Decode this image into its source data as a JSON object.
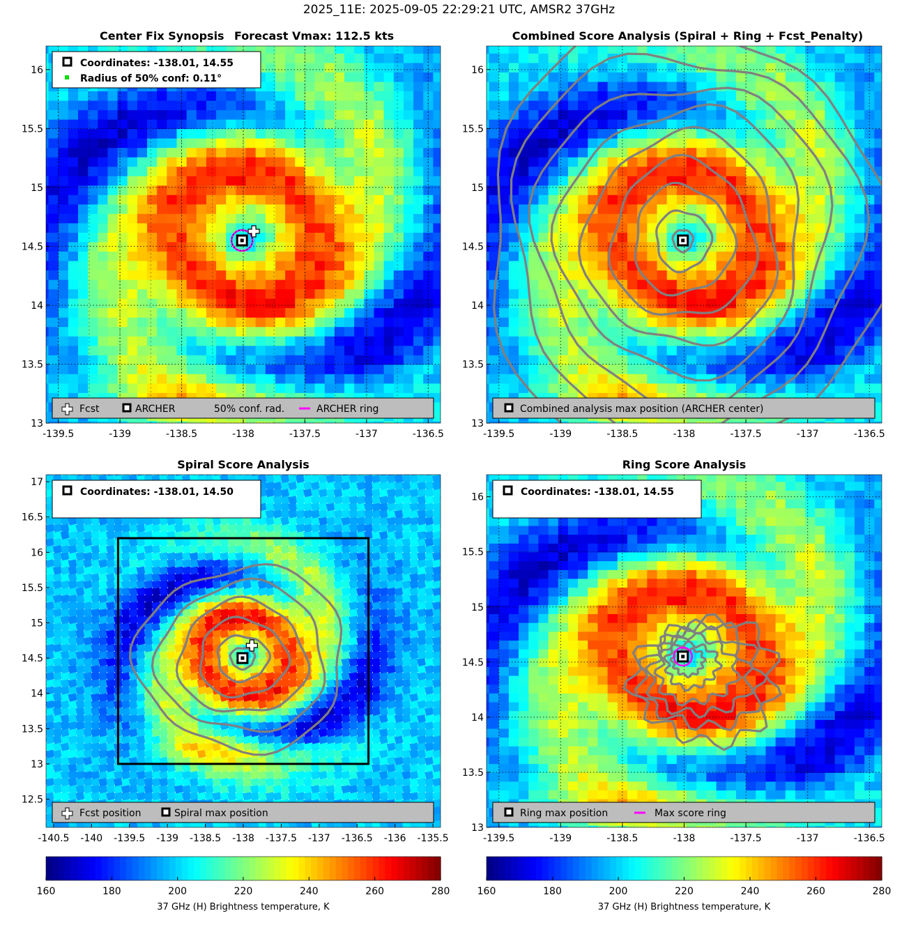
{
  "figure_title": "2025_11E: 2025-09-05 22:29:21 UTC, AMSR2 37GHz",
  "colors": {
    "fcst": "#ffffff",
    "archer_marker": "#000000",
    "ring": "#ff00ff",
    "conf_point": "#00dd00",
    "contour": "#808080",
    "legend_bg": "#bdbdbd"
  },
  "chart_data": [
    {
      "id": "synopsis",
      "type": "heatmap",
      "title": "Center Fix Synopsis      Forecast Vmax: 112.5 kts",
      "xlim": [
        -139.6,
        -136.4
      ],
      "ylim": [
        13.0,
        16.2
      ],
      "xticks": [
        -139.5,
        -139,
        -138.5,
        -138,
        -137.5,
        -137,
        -136.5
      ],
      "xtick_labels": [
        "-139.5",
        "-139",
        "-138.5",
        "-138",
        "-137.5",
        "-137",
        "-136.5"
      ],
      "yticks": [
        13,
        13.5,
        14,
        14.5,
        15,
        15.5,
        16
      ],
      "ytick_labels": [
        "13",
        "13.5",
        "14",
        "14.5",
        "15",
        "15.5",
        "16"
      ],
      "grid": "dotted",
      "center": [
        -138.01,
        14.55
      ],
      "fcst_position": [
        -137.96,
        14.58
      ],
      "conf_radius_deg": 0.11,
      "info_lines": [
        "Coordinates: -138.01, 14.55",
        "Radius of 50% conf: 0.11°"
      ],
      "legend": [
        "Fcst",
        "ARCHER",
        "50% conf. rad.",
        "ARCHER ring"
      ],
      "legend_placement": "bottom"
    },
    {
      "id": "combined",
      "type": "heatmap",
      "title": "Combined Score Analysis (Spiral + Ring + Fcst_Penalty)",
      "xlim": [
        -139.6,
        -136.4
      ],
      "ylim": [
        13.0,
        16.2
      ],
      "xticks": [
        -139.5,
        -139,
        -138.5,
        -138,
        -137.5,
        -137,
        -136.5
      ],
      "xtick_labels": [
        "-139.5",
        "-139",
        "-138.5",
        "-138",
        "-137.5",
        "-137",
        "-136.5"
      ],
      "yticks": [
        13,
        13.5,
        14,
        14.5,
        15,
        15.5,
        16
      ],
      "ytick_labels": [
        "13",
        "13.5",
        "14",
        "14.5",
        "15",
        "15.5",
        "16"
      ],
      "grid": "dotted",
      "center": [
        -138.01,
        14.55
      ],
      "contour_radii_deg": [
        0.08,
        0.22,
        0.4,
        0.58,
        0.78,
        0.98,
        1.18,
        1.4,
        1.62
      ],
      "legend": [
        "Combined analysis max position (ARCHER center)"
      ],
      "legend_placement": "bottom"
    },
    {
      "id": "spiral",
      "type": "heatmap",
      "title": "Spiral Score Analysis",
      "xlim": [
        -140.6,
        -135.4
      ],
      "ylim": [
        12.1,
        17.1
      ],
      "xticks": [
        -140.5,
        -140,
        -139.5,
        -139,
        -138.5,
        -138,
        -137.5,
        -137,
        -136.5,
        -136,
        -135.5
      ],
      "xtick_labels": [
        "-140.5",
        "-140",
        "-139.5",
        "-139",
        "-138.5",
        "-138",
        "-137.5",
        "-137",
        "-136.5",
        "-136",
        "-135.5"
      ],
      "yticks": [
        12.5,
        13,
        13.5,
        14,
        14.5,
        15,
        15.5,
        16,
        16.5,
        17
      ],
      "ytick_labels": [
        "12.5",
        "13",
        "13.5",
        "14",
        "14.5",
        "15",
        "15.5",
        "16",
        "16.5",
        "17"
      ],
      "grid": "none",
      "center": [
        -138.01,
        14.5
      ],
      "fcst_position": [
        -137.96,
        14.6
      ],
      "search_box": {
        "lon": [
          -139.65,
          -136.35
        ],
        "lat": [
          13.0,
          16.2
        ]
      },
      "contour_radii_deg": [
        0.15,
        0.32,
        0.55,
        0.8,
        1.05,
        1.3
      ],
      "info_lines": [
        "Coordinates: -138.01, 14.50"
      ],
      "legend": [
        "Fcst position",
        "Spiral max position"
      ],
      "legend_placement": "bottom"
    },
    {
      "id": "ring",
      "type": "heatmap",
      "title": "Ring Score Analysis",
      "xlim": [
        -139.6,
        -136.4
      ],
      "ylim": [
        13.0,
        16.2
      ],
      "xticks": [
        -139.5,
        -139,
        -138.5,
        -138,
        -137.5,
        -137,
        -136.5
      ],
      "xtick_labels": [
        "-139.5",
        "-139",
        "-138.5",
        "-138",
        "-137.5",
        "-137",
        "-136.5"
      ],
      "yticks": [
        13,
        13.5,
        14,
        14.5,
        15,
        15.5,
        16
      ],
      "ytick_labels": [
        "13",
        "13.5",
        "14",
        "14.5",
        "15",
        "15.5",
        "16"
      ],
      "grid": "dotted",
      "center": [
        -138.01,
        14.55
      ],
      "contour_radii_deg": [
        0.12,
        0.2,
        0.3,
        0.38,
        0.46,
        0.55
      ],
      "info_lines": [
        "Coordinates: -138.01, 14.55"
      ],
      "legend": [
        "Ring max position",
        "Max score ring"
      ],
      "legend_placement": "bottom"
    }
  ],
  "colorbars": [
    {
      "id": "left",
      "range": [
        160,
        280
      ],
      "ticks": [
        160,
        180,
        200,
        220,
        240,
        260,
        280
      ],
      "tick_labels": [
        "160",
        "180",
        "200",
        "220",
        "240",
        "260",
        "280"
      ],
      "label": "37 GHz (H) Brightness temperature, K",
      "colormap": "jet"
    },
    {
      "id": "right",
      "range": [
        160,
        280
      ],
      "ticks": [
        160,
        180,
        200,
        220,
        240,
        260,
        280
      ],
      "tick_labels": [
        "160",
        "180",
        "200",
        "220",
        "240",
        "260",
        "280"
      ],
      "label": "37 GHz (H) Brightness temperature, K",
      "colormap": "jet"
    }
  ]
}
